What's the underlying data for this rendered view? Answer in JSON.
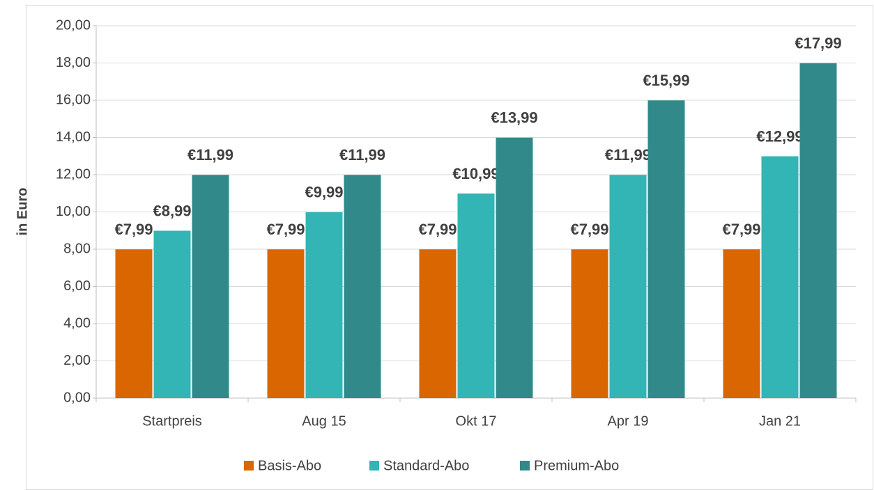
{
  "chart_data": {
    "type": "bar",
    "y_label": "in Euro",
    "categories": [
      "Startpreis",
      "Aug 15",
      "Okt 17",
      "Apr 19",
      "Jan 21"
    ],
    "series": [
      {
        "name": "Basis-Abo",
        "color": "#d96600",
        "values": [
          7.99,
          7.99,
          7.99,
          7.99,
          7.99
        ],
        "value_labels": [
          "€7,99",
          "€7,99",
          "€7,99",
          "€7,99",
          "€7,99"
        ]
      },
      {
        "name": "Standard-Abo",
        "color": "#33b5b5",
        "values": [
          8.99,
          9.99,
          10.99,
          11.99,
          12.99
        ],
        "value_labels": [
          "€8,99",
          "€9,99",
          "€10,99",
          "€11,99",
          "€12,99"
        ]
      },
      {
        "name": "Premium-Abo",
        "color": "#318a89",
        "values": [
          11.99,
          11.99,
          13.99,
          15.99,
          17.99
        ],
        "value_labels": [
          "€11,99",
          "€11,99",
          "€13,99",
          "€15,99",
          "€17,99"
        ]
      }
    ],
    "ylim": [
      0,
      20
    ],
    "yticks": [
      {
        "value": 0,
        "label": "0,00"
      },
      {
        "value": 2,
        "label": "2,00"
      },
      {
        "value": 4,
        "label": "4,00"
      },
      {
        "value": 6,
        "label": "6,00"
      },
      {
        "value": 8,
        "label": "8,00"
      },
      {
        "value": 10,
        "label": "10,00"
      },
      {
        "value": 12,
        "label": "12,00"
      },
      {
        "value": 14,
        "label": "14,00"
      },
      {
        "value": 16,
        "label": "16,00"
      },
      {
        "value": 18,
        "label": "18,00"
      },
      {
        "value": 20,
        "label": "20,00"
      }
    ],
    "grid": true,
    "legend": "bottom"
  }
}
